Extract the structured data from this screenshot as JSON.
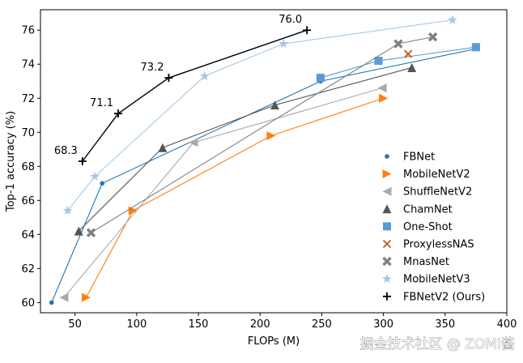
{
  "watermark": "掘金技术社区 @ ZOMI酱",
  "chart_data": {
    "type": "line",
    "title": "",
    "xlabel": "FLOPs (M)",
    "ylabel": "Top-1 accuracy (%)",
    "xlim": [
      22,
      400
    ],
    "ylim": [
      59.4,
      77.2
    ],
    "xticks": [
      50,
      100,
      150,
      200,
      250,
      300,
      350,
      400
    ],
    "yticks": [
      60,
      62,
      64,
      66,
      68,
      70,
      72,
      74,
      76
    ],
    "grid": false,
    "legend_position": "lower-right",
    "series": [
      {
        "name": "FBNet",
        "color": "#1f77b4",
        "marker": "dot",
        "points": [
          [
            31,
            60.0
          ],
          [
            72,
            67.0
          ],
          [
            249,
            73.0
          ],
          [
            375,
            74.9
          ]
        ]
      },
      {
        "name": "MobileNetV2",
        "color": "#ff7f0e",
        "marker": "triangle-right",
        "points": [
          [
            59,
            60.3
          ],
          [
            97,
            65.4
          ],
          [
            209,
            69.8
          ],
          [
            300,
            72.0
          ]
        ]
      },
      {
        "name": "ShuffleNetV2",
        "color": "#aaaaaa",
        "marker": "triangle-left",
        "points": [
          [
            41,
            60.3
          ],
          [
            146,
            69.4
          ],
          [
            299,
            72.6
          ]
        ]
      },
      {
        "name": "ChamNet",
        "color": "#555555",
        "marker": "triangle-up",
        "points": [
          [
            53,
            64.2
          ],
          [
            121,
            69.1
          ],
          [
            212,
            71.6
          ],
          [
            323,
            73.8
          ]
        ]
      },
      {
        "name": "One-Shot",
        "color": "#5b9bd5",
        "marker": "square",
        "points": [
          [
            249,
            73.2
          ],
          [
            296,
            74.2
          ],
          [
            375,
            75.0
          ]
        ]
      },
      {
        "name": "ProxylessNAS",
        "color": "#c0561a",
        "marker": "x",
        "points": [
          [
            320,
            74.6
          ]
        ]
      },
      {
        "name": "MnasNet",
        "color": "#808080",
        "marker": "X",
        "points": [
          [
            63,
            64.1
          ],
          [
            312,
            75.2
          ],
          [
            340,
            75.6
          ]
        ]
      },
      {
        "name": "MobileNetV3",
        "color": "#a6c8e8",
        "marker": "star",
        "points": [
          [
            44,
            65.4
          ],
          [
            66,
            67.4
          ],
          [
            155,
            73.3
          ],
          [
            219,
            75.2
          ],
          [
            356,
            76.6
          ]
        ]
      },
      {
        "name": "FBNetV2 (Ours)",
        "color": "#000000",
        "marker": "plus",
        "points": [
          [
            56,
            68.3
          ],
          [
            85,
            71.1
          ],
          [
            126,
            73.2
          ],
          [
            238,
            76.0
          ]
        ]
      }
    ],
    "annotations": [
      {
        "text": "68.3",
        "x": 56,
        "y": 68.3
      },
      {
        "text": "71.1",
        "x": 85,
        "y": 71.1
      },
      {
        "text": "73.2",
        "x": 126,
        "y": 73.2
      },
      {
        "text": "76.0",
        "x": 238,
        "y": 76.0
      }
    ]
  }
}
